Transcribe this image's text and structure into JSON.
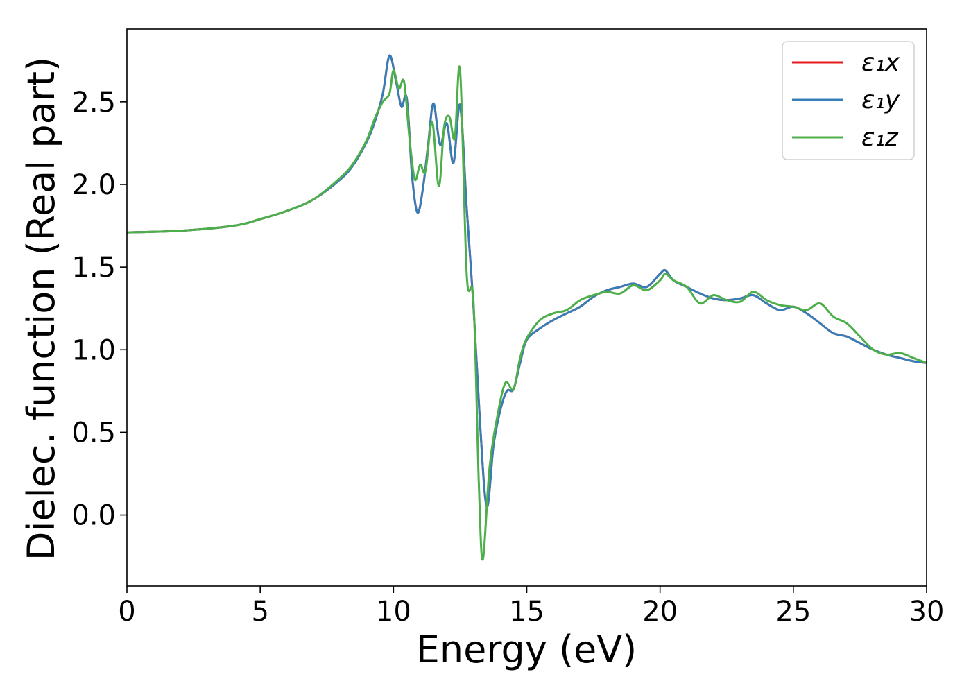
{
  "chart_data": {
    "type": "line",
    "title": "",
    "xlabel": "Energy (eV)",
    "ylabel": "Dielec. function (Real part)",
    "xlim": [
      0,
      30
    ],
    "ylim": [
      -0.43,
      2.94
    ],
    "xticks": [
      0,
      5,
      10,
      15,
      20,
      25,
      30
    ],
    "yticks": [
      0.0,
      0.5,
      1.0,
      1.5,
      2.0,
      2.5
    ],
    "xtick_labels": [
      "0",
      "5",
      "10",
      "15",
      "20",
      "25",
      "30"
    ],
    "ytick_labels": [
      "0.0",
      "0.5",
      "1.0",
      "1.5",
      "2.0",
      "2.5"
    ],
    "grid": false,
    "legend_position": "top-right",
    "series": [
      {
        "name": "ε₁x",
        "color": "#e41a1c",
        "x": [
          0,
          2,
          4,
          5,
          6,
          7,
          8,
          8.5,
          9,
          9.3,
          9.6,
          9.85,
          10.1,
          10.3,
          10.5,
          10.7,
          10.9,
          11.1,
          11.3,
          11.5,
          11.75,
          12.0,
          12.25,
          12.5,
          12.75,
          13.0,
          13.25,
          13.5,
          13.75,
          14.0,
          14.25,
          14.5,
          14.75,
          15.0,
          15.5,
          16.0,
          16.5,
          17.0,
          17.5,
          18.0,
          18.5,
          19.0,
          19.5,
          20.0,
          20.2,
          20.5,
          21.0,
          21.5,
          22.0,
          22.5,
          23.0,
          23.5,
          24.0,
          24.5,
          25.0,
          25.5,
          26.0,
          26.5,
          27.0,
          27.5,
          28.0,
          28.5,
          29.0,
          29.5,
          30.0
        ],
        "values": [
          1.71,
          1.72,
          1.75,
          1.79,
          1.84,
          1.91,
          2.03,
          2.12,
          2.26,
          2.38,
          2.55,
          2.78,
          2.62,
          2.47,
          2.52,
          2.05,
          1.83,
          1.97,
          2.24,
          2.49,
          2.24,
          2.37,
          2.13,
          2.48,
          1.85,
          1.27,
          0.55,
          0.05,
          0.42,
          0.63,
          0.75,
          0.76,
          0.92,
          1.06,
          1.13,
          1.18,
          1.22,
          1.26,
          1.32,
          1.36,
          1.38,
          1.4,
          1.38,
          1.46,
          1.48,
          1.42,
          1.38,
          1.34,
          1.31,
          1.3,
          1.31,
          1.33,
          1.28,
          1.24,
          1.26,
          1.22,
          1.16,
          1.1,
          1.08,
          1.04,
          1.0,
          0.97,
          0.95,
          0.93,
          0.92
        ]
      },
      {
        "name": "ε₁y",
        "color": "#377eb8",
        "x": [
          0,
          2,
          4,
          5,
          6,
          7,
          8,
          8.5,
          9,
          9.3,
          9.6,
          9.85,
          10.1,
          10.3,
          10.5,
          10.7,
          10.9,
          11.1,
          11.3,
          11.5,
          11.75,
          12.0,
          12.25,
          12.5,
          12.75,
          13.0,
          13.25,
          13.5,
          13.75,
          14.0,
          14.25,
          14.5,
          14.75,
          15.0,
          15.5,
          16.0,
          16.5,
          17.0,
          17.5,
          18.0,
          18.5,
          19.0,
          19.5,
          20.0,
          20.2,
          20.5,
          21.0,
          21.5,
          22.0,
          22.5,
          23.0,
          23.5,
          24.0,
          24.5,
          25.0,
          25.5,
          26.0,
          26.5,
          27.0,
          27.5,
          28.0,
          28.5,
          29.0,
          29.5,
          30.0
        ],
        "values": [
          1.71,
          1.72,
          1.75,
          1.79,
          1.84,
          1.91,
          2.03,
          2.12,
          2.26,
          2.38,
          2.55,
          2.78,
          2.62,
          2.47,
          2.52,
          2.05,
          1.83,
          1.97,
          2.24,
          2.49,
          2.24,
          2.37,
          2.13,
          2.48,
          1.85,
          1.27,
          0.55,
          0.05,
          0.42,
          0.63,
          0.75,
          0.76,
          0.92,
          1.06,
          1.13,
          1.18,
          1.22,
          1.26,
          1.32,
          1.36,
          1.38,
          1.4,
          1.38,
          1.46,
          1.48,
          1.42,
          1.38,
          1.34,
          1.31,
          1.3,
          1.31,
          1.33,
          1.28,
          1.24,
          1.26,
          1.22,
          1.16,
          1.1,
          1.08,
          1.04,
          1.0,
          0.97,
          0.95,
          0.93,
          0.92
        ]
      },
      {
        "name": "ε₁z",
        "color": "#4daf4a",
        "x": [
          0,
          2,
          4,
          5,
          6,
          7,
          8,
          8.5,
          9,
          9.3,
          9.6,
          9.85,
          10.0,
          10.2,
          10.4,
          10.6,
          10.8,
          11.0,
          11.2,
          11.45,
          11.7,
          11.9,
          12.1,
          12.3,
          12.5,
          12.75,
          13.0,
          13.2,
          13.35,
          13.6,
          13.9,
          14.2,
          14.5,
          14.75,
          15.0,
          15.5,
          16.0,
          16.5,
          17.0,
          17.5,
          18.0,
          18.5,
          19.0,
          19.5,
          20.0,
          20.2,
          20.5,
          21.0,
          21.5,
          22.0,
          22.5,
          23.0,
          23.5,
          24.0,
          24.5,
          25.0,
          25.5,
          26.0,
          26.5,
          27.0,
          27.5,
          28.0,
          28.5,
          29.0,
          29.5,
          30.0
        ],
        "values": [
          1.71,
          1.72,
          1.75,
          1.79,
          1.84,
          1.91,
          2.04,
          2.13,
          2.27,
          2.4,
          2.5,
          2.55,
          2.69,
          2.58,
          2.62,
          2.28,
          2.03,
          2.12,
          2.08,
          2.38,
          1.99,
          2.35,
          2.41,
          2.28,
          2.69,
          1.45,
          1.3,
          0.2,
          -0.27,
          0.28,
          0.6,
          0.8,
          0.76,
          0.95,
          1.07,
          1.18,
          1.22,
          1.24,
          1.3,
          1.33,
          1.35,
          1.34,
          1.39,
          1.36,
          1.42,
          1.46,
          1.42,
          1.38,
          1.28,
          1.33,
          1.3,
          1.29,
          1.35,
          1.3,
          1.27,
          1.26,
          1.24,
          1.28,
          1.2,
          1.16,
          1.08,
          1.0,
          0.97,
          0.98,
          0.95,
          0.92
        ]
      }
    ]
  }
}
